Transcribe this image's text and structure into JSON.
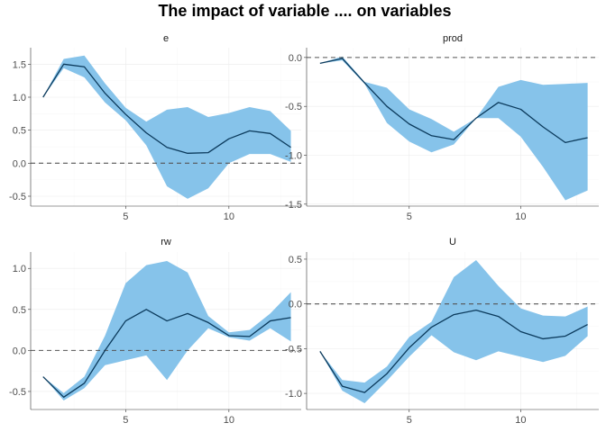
{
  "title": "The impact of variable .... on variables",
  "colors": {
    "band": "#86c3ea",
    "line": "#0b3a5c",
    "zero_line": "#555555"
  },
  "chart_data": [
    {
      "type": "area",
      "title": "e",
      "x": [
        1,
        2,
        3,
        4,
        5,
        6,
        7,
        8,
        9,
        10,
        11,
        12,
        13
      ],
      "xticks": [
        5,
        10
      ],
      "xlim": [
        0.4,
        13.5
      ],
      "ylim": [
        -0.65,
        1.75
      ],
      "yticks": [
        -0.5,
        0.0,
        0.5,
        1.0,
        1.5
      ],
      "ytick_labels": [
        "-0.5",
        "0.0",
        "0.5",
        "1.0",
        "1.5"
      ],
      "reference_line": 0,
      "series": [
        {
          "values": [
            1.0,
            1.5,
            1.46,
            1.06,
            0.74,
            0.46,
            0.24,
            0.15,
            0.16,
            0.37,
            0.49,
            0.45,
            0.24
          ]
        },
        {
          "values": [
            1.0,
            1.58,
            1.63,
            1.21,
            0.84,
            0.63,
            0.81,
            0.85,
            0.7,
            0.76,
            0.85,
            0.79,
            0.49
          ]
        },
        {
          "values": [
            1.0,
            1.44,
            1.3,
            0.92,
            0.65,
            0.27,
            -0.35,
            -0.54,
            -0.38,
            0.0,
            0.14,
            0.14,
            0.02
          ]
        }
      ]
    },
    {
      "type": "area",
      "title": "prod",
      "x": [
        1,
        2,
        3,
        4,
        5,
        6,
        7,
        8,
        9,
        10,
        11,
        12,
        13
      ],
      "xticks": [
        5,
        10
      ],
      "xlim": [
        0.4,
        13.5
      ],
      "ylim": [
        -1.52,
        0.1
      ],
      "yticks": [
        -1.5,
        -1.0,
        -0.5,
        0.0
      ],
      "ytick_labels": [
        "-1.5",
        "-1.0",
        "-0.5",
        "0.0"
      ],
      "reference_line": 0,
      "series": [
        {
          "values": [
            -0.06,
            -0.01,
            -0.26,
            -0.5,
            -0.68,
            -0.8,
            -0.84,
            -0.62,
            -0.46,
            -0.53,
            -0.71,
            -0.87,
            -0.82
          ]
        },
        {
          "values": [
            -0.06,
            0.01,
            -0.25,
            -0.31,
            -0.53,
            -0.63,
            -0.76,
            -0.62,
            -0.3,
            -0.23,
            -0.28,
            -0.27,
            -0.26
          ]
        },
        {
          "values": [
            -0.06,
            -0.03,
            -0.27,
            -0.67,
            -0.86,
            -0.97,
            -0.89,
            -0.62,
            -0.62,
            -0.81,
            -1.12,
            -1.46,
            -1.36
          ]
        }
      ]
    },
    {
      "type": "area",
      "title": "rw",
      "x": [
        1,
        2,
        3,
        4,
        5,
        6,
        7,
        8,
        9,
        10,
        11,
        12,
        13
      ],
      "xticks": [
        5,
        10
      ],
      "xlim": [
        0.4,
        13.5
      ],
      "ylim": [
        -0.72,
        1.2
      ],
      "yticks": [
        -0.5,
        0.0,
        0.5,
        1.0
      ],
      "ytick_labels": [
        "-0.5",
        "0.0",
        "0.5",
        "1.0"
      ],
      "reference_line": 0,
      "series": [
        {
          "values": [
            -0.32,
            -0.57,
            -0.4,
            0.0,
            0.36,
            0.5,
            0.36,
            0.45,
            0.34,
            0.18,
            0.17,
            0.36,
            0.4
          ]
        },
        {
          "values": [
            -0.32,
            -0.52,
            -0.32,
            0.18,
            0.82,
            1.04,
            1.09,
            0.95,
            0.42,
            0.22,
            0.25,
            0.45,
            0.71
          ]
        },
        {
          "values": [
            -0.32,
            -0.61,
            -0.46,
            -0.18,
            -0.12,
            -0.06,
            -0.36,
            0.0,
            0.27,
            0.16,
            0.12,
            0.27,
            0.11
          ]
        }
      ]
    },
    {
      "type": "area",
      "title": "U",
      "x": [
        1,
        2,
        3,
        4,
        5,
        6,
        7,
        8,
        9,
        10,
        11,
        12,
        13
      ],
      "xticks": [
        5,
        10
      ],
      "xlim": [
        0.4,
        13.5
      ],
      "ylim": [
        -1.18,
        0.58
      ],
      "yticks": [
        -1.0,
        -0.5,
        0.0,
        0.5
      ],
      "ytick_labels": [
        "-1.0",
        "-0.5",
        "0.0",
        "0.5"
      ],
      "reference_line": 0,
      "series": [
        {
          "values": [
            -0.53,
            -0.92,
            -0.99,
            -0.78,
            -0.49,
            -0.26,
            -0.12,
            -0.07,
            -0.14,
            -0.31,
            -0.39,
            -0.36,
            -0.23
          ]
        },
        {
          "values": [
            -0.53,
            -0.85,
            -0.88,
            -0.7,
            -0.37,
            -0.2,
            0.3,
            0.49,
            0.2,
            -0.05,
            -0.13,
            -0.14,
            -0.03
          ]
        },
        {
          "values": [
            -0.53,
            -0.97,
            -1.11,
            -0.86,
            -0.59,
            -0.35,
            -0.54,
            -0.63,
            -0.53,
            -0.59,
            -0.65,
            -0.58,
            -0.36
          ]
        }
      ]
    }
  ]
}
